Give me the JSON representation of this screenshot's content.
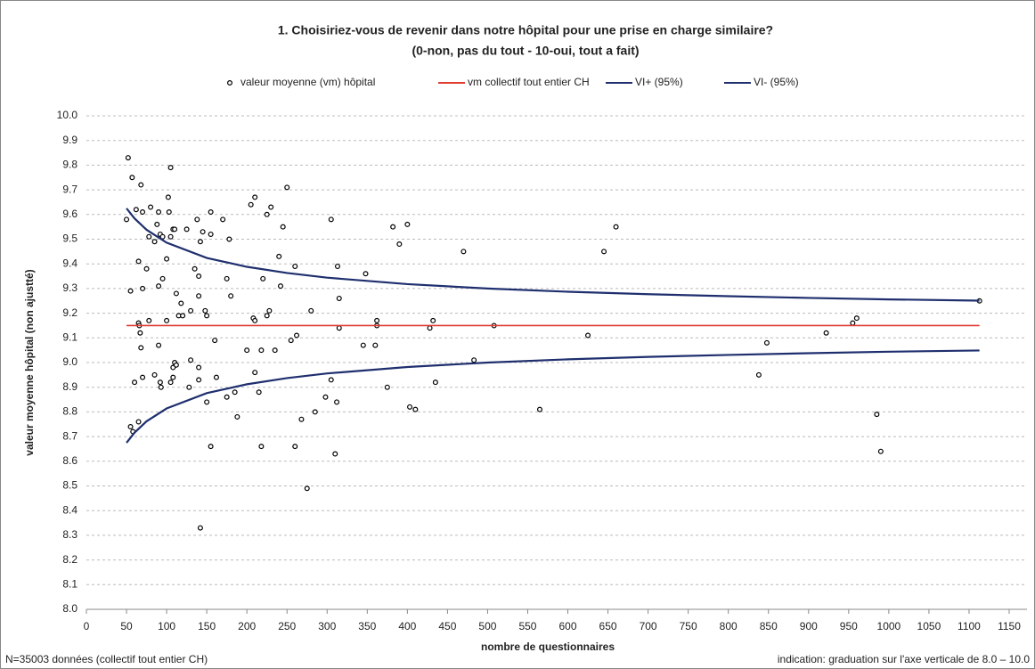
{
  "chart_data": {
    "type": "scatter",
    "title": [
      "1. Choisiriez-vous de revenir dans notre hôpital pour une prise en charge similaire?",
      "(0-non, pas du tout - 10-oui, tout a fait)"
    ],
    "x_label": "nombre de questionnaires",
    "y_label": "valeur moyenne hôpital (non ajustté)",
    "annotations": [
      "N=35003 données (collectif tout entier CH)",
      "indication: graduation sur l'axe verticale de 8.0 – 10.0"
    ],
    "xlim": [
      0,
      1150
    ],
    "xticks": [
      0,
      50,
      100,
      150,
      200,
      250,
      300,
      350,
      400,
      450,
      500,
      550,
      600,
      650,
      700,
      750,
      800,
      850,
      900,
      950,
      1000,
      1050,
      1100,
      1150
    ],
    "ylim": [
      8.0,
      10.0
    ],
    "yticks": [
      {
        "value": 8.0,
        "label": "8.0"
      },
      8.1,
      8.2,
      8.3,
      8.4,
      8.5,
      8.6,
      8.7,
      8.8,
      8.9,
      {
        "value": 9.0,
        "label": "9.0"
      },
      9.1,
      9.2,
      9.3,
      9.4,
      9.5,
      9.6,
      9.7,
      9.8,
      9.9,
      {
        "value": 10.0,
        "label": "10.0"
      }
    ],
    "grid": true,
    "legend": "top",
    "series": [
      {
        "name": "valeur moyenne (vm) hôpital",
        "kind": "scatter",
        "color": "#000000",
        "x": [
          52,
          57,
          62,
          68,
          50,
          55,
          65,
          70,
          75,
          70,
          78,
          80,
          85,
          88,
          90,
          92,
          95,
          100,
          102,
          103,
          105,
          105,
          108,
          110,
          112,
          95,
          90,
          78,
          65,
          66,
          67,
          68,
          60,
          70,
          55,
          58,
          65,
          85,
          90,
          92,
          93,
          100,
          105,
          108,
          108,
          110,
          112,
          115,
          118,
          120,
          125,
          130,
          130,
          128,
          135,
          138,
          140,
          140,
          142,
          140,
          145,
          140,
          142,
          148,
          150,
          150,
          155,
          155,
          155,
          160,
          162,
          170,
          175,
          175,
          178,
          180,
          185,
          188,
          200,
          205,
          208,
          210,
          210,
          210,
          215,
          218,
          218,
          220,
          225,
          225,
          228,
          230,
          235,
          240,
          242,
          245,
          250,
          255,
          260,
          262,
          260,
          268,
          275,
          280,
          285,
          298,
          305,
          305,
          310,
          312,
          313,
          315,
          315,
          345,
          348,
          360,
          362,
          362,
          375,
          382,
          390,
          400,
          403,
          410,
          428,
          432,
          435,
          470,
          483,
          508,
          565,
          625,
          645,
          660,
          838,
          848,
          922,
          955,
          960,
          985,
          990,
          1113
        ],
        "values": [
          9.83,
          9.75,
          9.62,
          9.72,
          9.58,
          9.29,
          9.41,
          9.61,
          9.38,
          9.3,
          9.51,
          9.63,
          9.49,
          9.56,
          9.61,
          9.52,
          9.51,
          9.42,
          9.67,
          9.61,
          9.79,
          9.51,
          9.54,
          9.54,
          9.28,
          9.34,
          9.31,
          9.17,
          9.16,
          9.15,
          9.12,
          9.06,
          8.92,
          8.94,
          8.74,
          8.72,
          8.76,
          8.95,
          9.07,
          8.92,
          8.9,
          9.17,
          8.92,
          8.94,
          8.98,
          9.0,
          8.99,
          9.19,
          9.24,
          9.19,
          9.54,
          9.21,
          9.01,
          8.9,
          9.38,
          9.58,
          9.35,
          9.27,
          9.49,
          8.98,
          9.53,
          8.93,
          8.33,
          9.21,
          9.19,
          8.84,
          9.61,
          9.52,
          8.66,
          9.09,
          8.94,
          9.58,
          9.34,
          8.86,
          9.5,
          9.27,
          8.88,
          8.78,
          9.05,
          9.64,
          9.18,
          9.67,
          9.17,
          8.96,
          8.88,
          9.05,
          8.66,
          9.34,
          9.19,
          9.6,
          9.21,
          9.63,
          9.05,
          9.43,
          9.31,
          9.55,
          9.71,
          9.09,
          9.39,
          9.11,
          8.66,
          8.77,
          8.49,
          9.21,
          8.8,
          8.86,
          9.58,
          8.93,
          8.63,
          8.84,
          9.39,
          9.26,
          9.14,
          9.07,
          9.36,
          9.07,
          9.17,
          9.15,
          8.9,
          9.55,
          9.48,
          9.56,
          8.82,
          8.81,
          9.14,
          9.17,
          8.92,
          9.45,
          9.01,
          9.15,
          8.81,
          9.11,
          9.45,
          9.55,
          8.95,
          9.08,
          9.12,
          9.16,
          9.18,
          8.79,
          8.64,
          9.25
        ]
      },
      {
        "name": "vm collectif tout entier CH",
        "kind": "line",
        "color": "#e03c31",
        "x": [
          50,
          1113
        ],
        "values": [
          9.15,
          9.15
        ]
      },
      {
        "name": "VI+ (95%)",
        "kind": "line",
        "color": "#1f2f6e",
        "x": [
          50,
          60,
          75,
          100,
          150,
          200,
          250,
          300,
          400,
          500,
          600,
          700,
          800,
          900,
          1000,
          1113
        ],
        "values": [
          9.625,
          9.584,
          9.538,
          9.486,
          9.424,
          9.388,
          9.363,
          9.344,
          9.318,
          9.3,
          9.287,
          9.277,
          9.269,
          9.262,
          9.256,
          9.251
        ]
      },
      {
        "name": "VI- (95%)",
        "kind": "line",
        "color": "#1f2f6e",
        "x": [
          50,
          60,
          75,
          100,
          150,
          200,
          250,
          300,
          400,
          500,
          600,
          700,
          800,
          900,
          1000,
          1113
        ],
        "values": [
          8.675,
          8.716,
          8.762,
          8.814,
          8.876,
          8.912,
          8.937,
          8.956,
          8.982,
          9.0,
          9.013,
          9.023,
          9.031,
          9.038,
          9.044,
          9.049
        ]
      }
    ]
  }
}
